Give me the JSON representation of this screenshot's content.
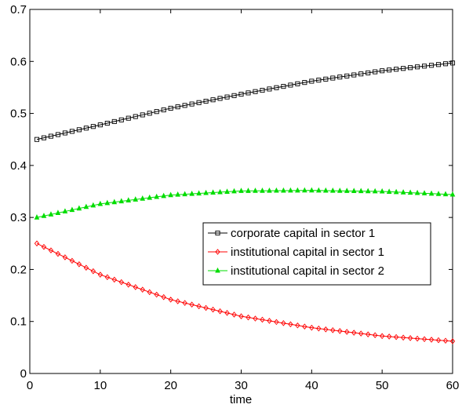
{
  "chart_data": {
    "type": "line",
    "title": "",
    "xlabel": "time",
    "ylabel": "",
    "xlim": [
      0,
      60
    ],
    "ylim": [
      0,
      0.7
    ],
    "xticks": [
      0,
      10,
      20,
      30,
      40,
      50,
      60
    ],
    "xtick_labels": [
      "0",
      "10",
      "20",
      "30",
      "40",
      "50",
      "60"
    ],
    "yticks": [
      0,
      0.1,
      0.2,
      0.3,
      0.4,
      0.5,
      0.6,
      0.7
    ],
    "ytick_labels": [
      "0",
      "0.1",
      "0.2",
      "0.3",
      "0.4",
      "0.5",
      "0.6",
      "0.7"
    ],
    "grid": false,
    "legend_position": "center-right",
    "x": [
      1,
      10,
      20,
      30,
      40,
      50,
      60
    ],
    "series": [
      {
        "name": "corporate capital in sector 1",
        "color": "#000000",
        "marker": "square",
        "values": [
          0.45,
          0.478,
          0.51,
          0.537,
          0.562,
          0.582,
          0.597
        ]
      },
      {
        "name": "institutional capital in sector 1",
        "color": "#ff0000",
        "marker": "diamond",
        "values": [
          0.25,
          0.19,
          0.142,
          0.11,
          0.088,
          0.072,
          0.062
        ]
      },
      {
        "name": "institutional capital in sector 2",
        "color": "#00dd00",
        "marker": "triangle",
        "values": [
          0.3,
          0.326,
          0.343,
          0.351,
          0.352,
          0.35,
          0.344
        ]
      }
    ]
  }
}
